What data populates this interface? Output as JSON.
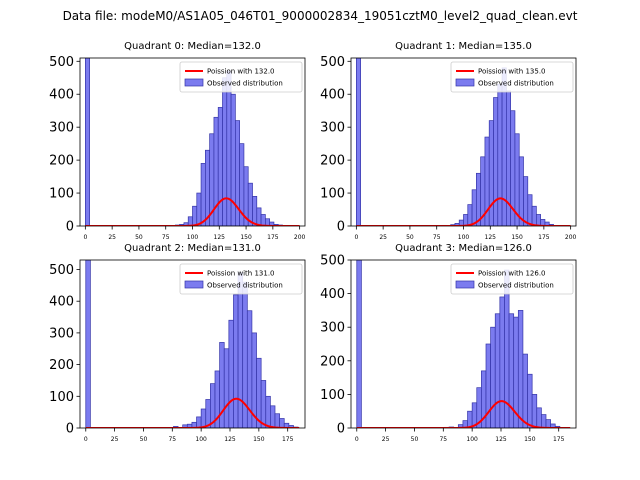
{
  "figure_title": "Data file: modeM0/AS1A05_046T01_9000002834_19051cztM0_level2_quad_clean.evt",
  "colors": {
    "bar": "#7b7bef",
    "bar_edge": "#3434a8",
    "curve": "#ff0000",
    "axis": "#000000"
  },
  "chart_data": [
    {
      "type": "bar",
      "title": "Quadrant 0: Median=132.0",
      "legend": [
        "Poission with 132.0",
        "Observed distribution"
      ],
      "legend_position": "top-right",
      "xlim": [
        -5,
        205
      ],
      "ylim": [
        0,
        510
      ],
      "xticks": [
        0,
        25,
        50,
        75,
        100,
        125,
        150,
        175,
        200
      ],
      "yticks": [
        0,
        100,
        200,
        300,
        400,
        500
      ],
      "bin_width": 4,
      "bins": [
        [
          0,
          510
        ],
        [
          76,
          2
        ],
        [
          84,
          3
        ],
        [
          88,
          5
        ],
        [
          92,
          10
        ],
        [
          96,
          28
        ],
        [
          100,
          60
        ],
        [
          104,
          100
        ],
        [
          108,
          190
        ],
        [
          112,
          230
        ],
        [
          116,
          280
        ],
        [
          120,
          330
        ],
        [
          124,
          360
        ],
        [
          128,
          450
        ],
        [
          132,
          470
        ],
        [
          136,
          400
        ],
        [
          140,
          320
        ],
        [
          144,
          250
        ],
        [
          148,
          180
        ],
        [
          152,
          130
        ],
        [
          156,
          90
        ],
        [
          160,
          55
        ],
        [
          164,
          35
        ],
        [
          168,
          22
        ],
        [
          172,
          12
        ],
        [
          176,
          5
        ],
        [
          180,
          3
        ]
      ],
      "poisson_mean": 132.0,
      "curve_scale": 2420,
      "curve_range": [
        0,
        200
      ]
    },
    {
      "type": "bar",
      "title": "Quadrant 1: Median=135.0",
      "legend": [
        "Poission with 135.0",
        "Observed distribution"
      ],
      "legend_position": "top-right",
      "xlim": [
        -5,
        205
      ],
      "ylim": [
        0,
        510
      ],
      "xticks": [
        0,
        25,
        50,
        75,
        100,
        125,
        150,
        175,
        200
      ],
      "yticks": [
        0,
        100,
        200,
        300,
        400,
        500
      ],
      "bin_width": 4,
      "bins": [
        [
          0,
          510
        ],
        [
          80,
          2
        ],
        [
          88,
          4
        ],
        [
          92,
          8
        ],
        [
          96,
          18
        ],
        [
          100,
          35
        ],
        [
          104,
          65
        ],
        [
          108,
          110
        ],
        [
          112,
          160
        ],
        [
          116,
          210
        ],
        [
          120,
          270
        ],
        [
          124,
          320
        ],
        [
          128,
          390
        ],
        [
          132,
          430
        ],
        [
          136,
          480
        ],
        [
          140,
          410
        ],
        [
          144,
          350
        ],
        [
          148,
          280
        ],
        [
          152,
          210
        ],
        [
          156,
          150
        ],
        [
          160,
          95
        ],
        [
          164,
          60
        ],
        [
          168,
          35
        ],
        [
          172,
          20
        ],
        [
          176,
          12
        ],
        [
          180,
          5
        ]
      ],
      "poisson_mean": 135.0,
      "curve_scale": 2440,
      "curve_range": [
        0,
        200
      ]
    },
    {
      "type": "bar",
      "title": "Quadrant 2: Median=131.0",
      "legend": [
        "Poission with 131.0",
        "Observed distribution"
      ],
      "legend_position": "top-right",
      "xlim": [
        -5,
        190
      ],
      "ylim": [
        0,
        530
      ],
      "xticks": [
        0,
        25,
        50,
        75,
        100,
        125,
        150,
        175
      ],
      "yticks": [
        0,
        100,
        200,
        300,
        400,
        500
      ],
      "bin_width": 4,
      "bins": [
        [
          0,
          530
        ],
        [
          76,
          5
        ],
        [
          84,
          10
        ],
        [
          88,
          12
        ],
        [
          92,
          18
        ],
        [
          96,
          35
        ],
        [
          100,
          60
        ],
        [
          104,
          90
        ],
        [
          108,
          140
        ],
        [
          112,
          180
        ],
        [
          116,
          270
        ],
        [
          120,
          250
        ],
        [
          124,
          340
        ],
        [
          128,
          420
        ],
        [
          132,
          490
        ],
        [
          136,
          460
        ],
        [
          140,
          370
        ],
        [
          144,
          300
        ],
        [
          148,
          220
        ],
        [
          152,
          150
        ],
        [
          156,
          100
        ],
        [
          160,
          70
        ],
        [
          164,
          45
        ],
        [
          168,
          30
        ],
        [
          172,
          15
        ],
        [
          176,
          8
        ],
        [
          180,
          3
        ]
      ],
      "poisson_mean": 131.0,
      "curve_scale": 2650,
      "curve_range": [
        0,
        185
      ]
    },
    {
      "type": "bar",
      "title": "Quadrant 3: Median=126.0",
      "legend": [
        "Poission with 126.0",
        "Observed distribution"
      ],
      "legend_position": "top-right",
      "xlim": [
        -5,
        190
      ],
      "ylim": [
        0,
        500
      ],
      "xticks": [
        0,
        25,
        50,
        75,
        100,
        125,
        150,
        175
      ],
      "yticks": [
        0,
        100,
        200,
        300,
        400,
        500
      ],
      "bin_width": 4,
      "bins": [
        [
          0,
          500
        ],
        [
          76,
          2
        ],
        [
          80,
          3
        ],
        [
          88,
          10
        ],
        [
          92,
          22
        ],
        [
          96,
          50
        ],
        [
          100,
          75
        ],
        [
          104,
          120
        ],
        [
          108,
          170
        ],
        [
          112,
          250
        ],
        [
          116,
          300
        ],
        [
          120,
          340
        ],
        [
          124,
          390
        ],
        [
          128,
          470
        ],
        [
          132,
          340
        ],
        [
          136,
          330
        ],
        [
          140,
          350
        ],
        [
          144,
          220
        ],
        [
          148,
          160
        ],
        [
          152,
          100
        ],
        [
          156,
          60
        ],
        [
          160,
          40
        ],
        [
          164,
          25
        ],
        [
          168,
          12
        ],
        [
          172,
          5
        ]
      ],
      "poisson_mean": 126.0,
      "curve_scale": 2250,
      "curve_range": [
        0,
        185
      ]
    }
  ]
}
